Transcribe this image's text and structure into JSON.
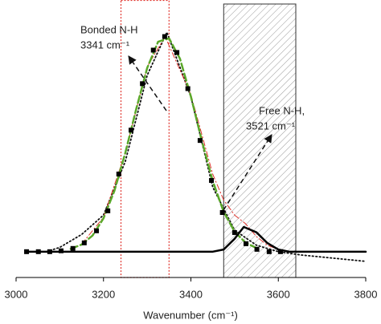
{
  "chart_data": {
    "type": "line",
    "xlabel": "Wavenumber (cm⁻¹)",
    "xlim": [
      3000,
      3800
    ],
    "xticks": [
      3000,
      3200,
      3400,
      3600,
      3800
    ],
    "ylim": [
      -0.12,
      1.17
    ],
    "regions": [
      {
        "x": [
          3240,
          3350
        ],
        "color": "#e0332c",
        "style": "dotted"
      },
      {
        "x": [
          3475,
          3640
        ],
        "color": "#333333",
        "style": "hatched"
      }
    ],
    "annotations": [
      {
        "lines": [
          "Bonded N-H",
          "3341 cm⁻¹"
        ]
      },
      {
        "lines": [
          "Free N-H,",
          "3521 cm⁻¹"
        ]
      }
    ],
    "series": [
      {
        "color": "#111111",
        "style": "dotted",
        "x": [
          3070,
          3100,
          3150,
          3200,
          3250,
          3300,
          3345,
          3400,
          3450,
          3500,
          3550,
          3600,
          3650,
          3700,
          3750,
          3800
        ],
        "values": [
          0,
          0.02,
          0.08,
          0.17,
          0.42,
          0.82,
          1.02,
          0.72,
          0.3,
          0.1,
          0.03,
          0,
          -0.015,
          -0.025,
          -0.035,
          -0.045
        ]
      },
      {
        "color": "#e0332c",
        "style": "dashdot",
        "x": [
          3150,
          3200,
          3250,
          3300,
          3341,
          3400,
          3450,
          3475,
          3500,
          3525,
          3550,
          3575,
          3600,
          3625
        ],
        "values": [
          0.035,
          0.16,
          0.46,
          0.86,
          1.0,
          0.73,
          0.36,
          0.24,
          0.17,
          0.13,
          0.07,
          0.03,
          0.01,
          0
        ]
      },
      {
        "color": "#5aa829",
        "style": "dashed",
        "x": [
          3125,
          3150,
          3175,
          3200,
          3225,
          3250,
          3275,
          3300,
          3325,
          3350,
          3375,
          3400,
          3425,
          3450,
          3475,
          3500,
          3525,
          3550
        ],
        "values": [
          0.013,
          0.033,
          0.075,
          0.155,
          0.283,
          0.46,
          0.664,
          0.854,
          0.976,
          0.992,
          0.897,
          0.721,
          0.516,
          0.328,
          0.185,
          0.093,
          0.042,
          0.017
        ]
      },
      {
        "color": "#000000",
        "style": "solid",
        "x": [
          3030,
          3450,
          3475,
          3500,
          3521,
          3550,
          3575,
          3600,
          3625,
          3800
        ],
        "values": [
          0,
          0,
          0.01,
          0.06,
          0.115,
          0.09,
          0.04,
          0.01,
          0,
          0
        ]
      },
      {
        "color": "#000000",
        "style": "markers",
        "x": [
          3024,
          3051,
          3077,
          3103,
          3130,
          3156,
          3184,
          3210,
          3235,
          3263,
          3289,
          3314,
          3340,
          3368,
          3393,
          3421,
          3447,
          3472,
          3500,
          3526,
          3551,
          3579,
          3605
        ],
        "values": [
          0,
          0,
          0,
          0.004,
          0.015,
          0.041,
          0.097,
          0.19,
          0.361,
          0.565,
          0.781,
          0.937,
          1.0,
          0.926,
          0.758,
          0.517,
          0.331,
          0.182,
          0.089,
          0.037,
          0.011,
          0,
          0
        ]
      }
    ]
  }
}
